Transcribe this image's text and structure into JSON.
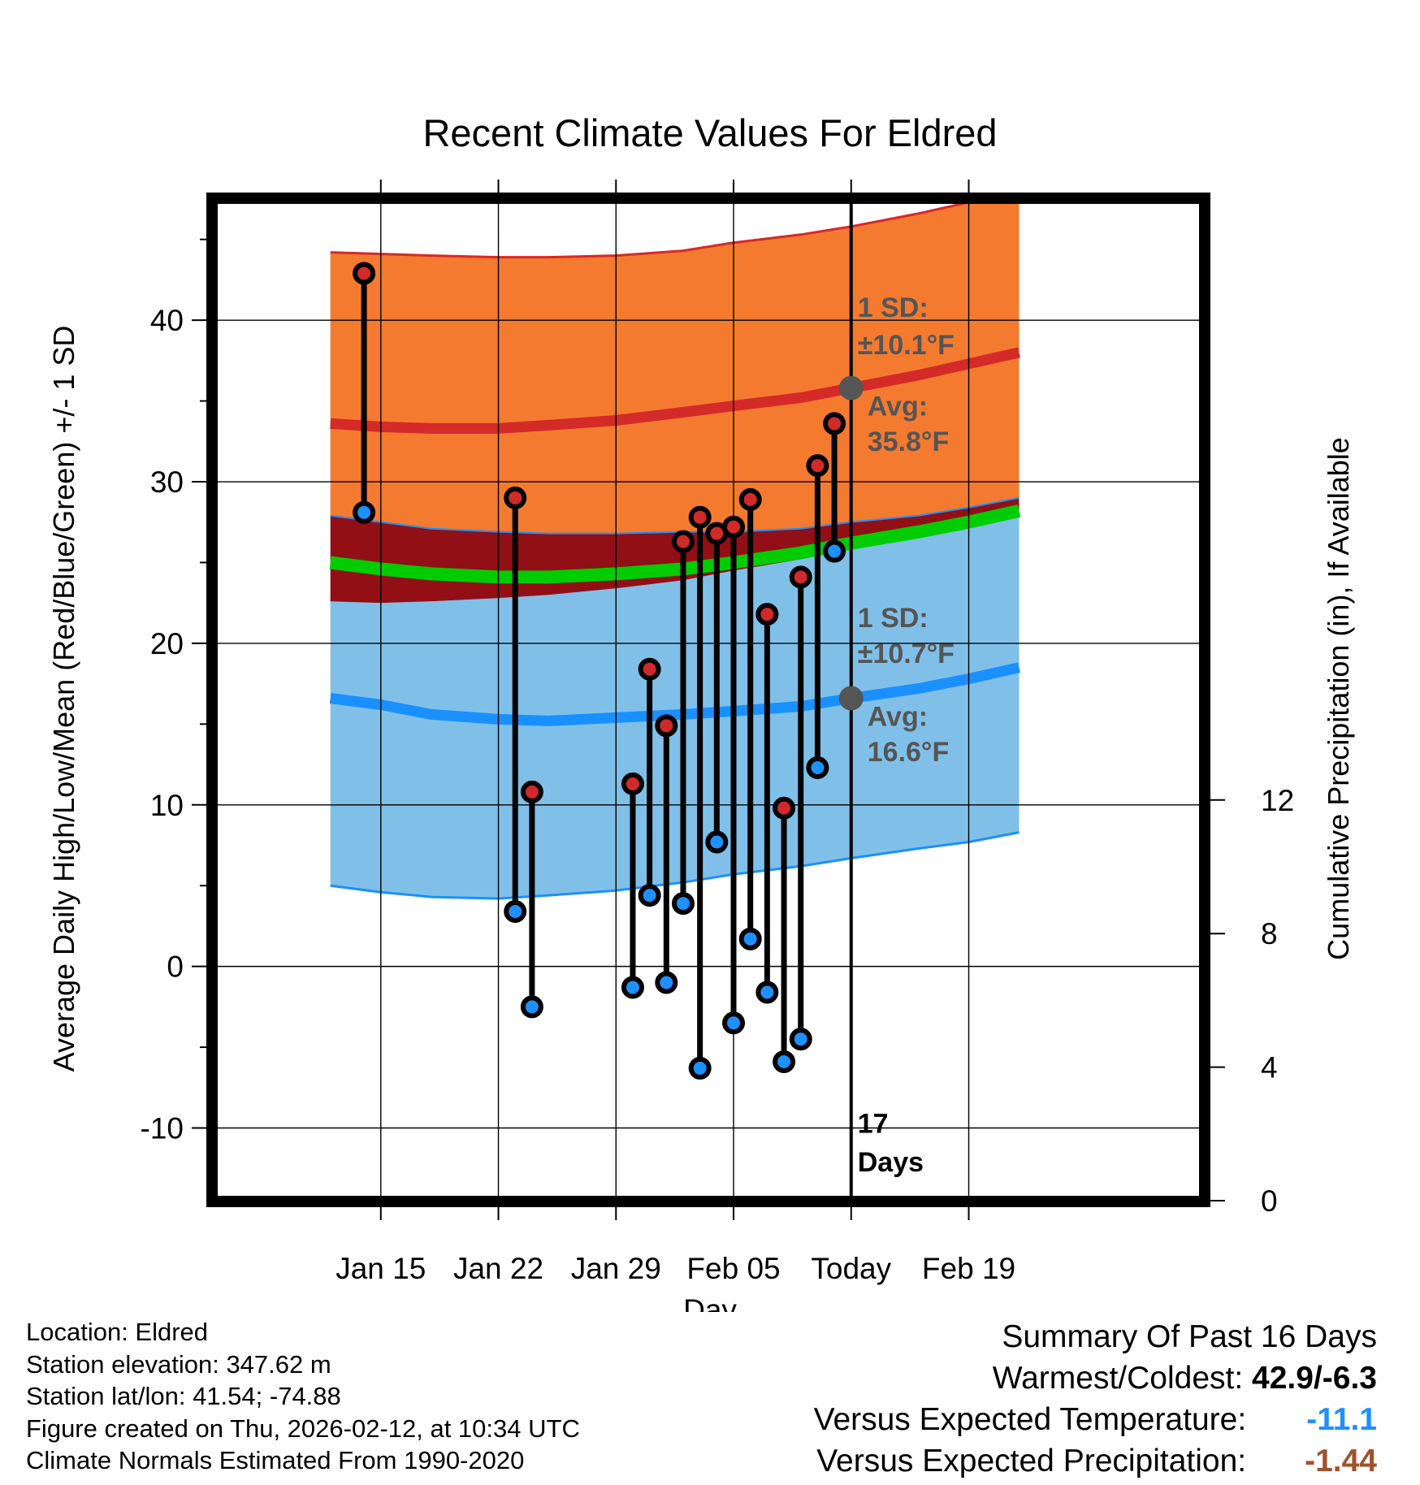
{
  "chart_data": {
    "type": "line",
    "title": "Recent Climate Values For Eldred",
    "xlabel": "Day",
    "ylabel": "Average Daily High/Low/Mean (Red/Blue/Green) +/- 1 SD",
    "y2label": "Cumulative Precipitation (in), If Available",
    "ylim": [
      -14.5,
      47.5
    ],
    "xlim": [
      -10,
      49
    ],
    "y2lim": [
      0,
      30
    ],
    "yticks": [
      -10,
      0,
      10,
      20,
      30,
      40
    ],
    "ytick_labels": [
      "-10",
      "0",
      "10",
      "20",
      "30",
      "40"
    ],
    "y2ticks": [
      0,
      4,
      8,
      12
    ],
    "y2tick_labels": [
      "0",
      "4",
      "8",
      "12"
    ],
    "xticks": [
      0,
      7,
      14,
      21,
      28,
      35
    ],
    "xtick_labels": [
      "Jan 15",
      "Jan 22",
      "Jan 29",
      "Feb 05",
      "Today",
      "Feb 19"
    ],
    "x_unit": "days since Jan 15",
    "today_x": 28,
    "normals": {
      "x": [
        -3,
        0,
        3,
        7,
        10,
        14,
        18,
        21,
        25,
        28,
        32,
        35,
        38
      ],
      "high_mean": [
        33.6,
        33.4,
        33.3,
        33.3,
        33.5,
        33.8,
        34.3,
        34.7,
        35.2,
        35.8,
        36.6,
        37.3,
        38.0
      ],
      "high_upper": [
        44.2,
        44.1,
        44.0,
        43.9,
        43.9,
        44.0,
        44.3,
        44.8,
        45.3,
        45.8,
        46.6,
        47.3,
        48.0
      ],
      "high_lower": [
        27.9,
        27.5,
        27.1,
        26.9,
        26.8,
        26.8,
        26.9,
        26.9,
        27.1,
        27.5,
        27.9,
        28.4,
        29.0
      ],
      "mean": [
        25.0,
        24.6,
        24.3,
        24.1,
        24.1,
        24.3,
        24.6,
        25.0,
        25.6,
        26.2,
        26.9,
        27.5,
        28.2
      ],
      "low_mean": [
        16.6,
        16.2,
        15.6,
        15.3,
        15.2,
        15.4,
        15.6,
        15.8,
        16.1,
        16.6,
        17.2,
        17.8,
        18.5
      ],
      "low_upper": [
        22.6,
        22.5,
        22.6,
        22.8,
        23.0,
        23.4,
        23.9,
        24.5,
        25.2,
        26.0,
        26.8,
        27.3,
        27.8
      ],
      "low_lower": [
        5.0,
        4.6,
        4.3,
        4.2,
        4.4,
        4.7,
        5.2,
        5.7,
        6.2,
        6.7,
        7.3,
        7.7,
        8.3
      ]
    },
    "observations": {
      "x": [
        -1,
        8,
        9,
        15,
        16,
        17,
        18,
        19,
        20,
        21,
        22,
        23,
        24,
        25,
        26,
        27
      ],
      "high": [
        42.9,
        29.0,
        10.8,
        11.3,
        18.4,
        14.9,
        26.3,
        27.8,
        26.8,
        27.2,
        28.9,
        21.8,
        9.8,
        24.1,
        31.0,
        33.6
      ],
      "low": [
        28.1,
        3.4,
        -2.5,
        -1.3,
        4.4,
        -1.0,
        3.9,
        -6.3,
        7.7,
        -3.5,
        1.7,
        -1.6,
        -5.9,
        -4.5,
        12.3,
        25.7
      ]
    },
    "annotations": {
      "high_sd_label": "1 SD:",
      "high_sd_value": "±10.1°F",
      "high_avg_label": "Avg:",
      "high_avg_value": "35.8°F",
      "low_sd_label": "1 SD:",
      "low_sd_value": "±10.7°F",
      "low_avg_label": "Avg:",
      "low_avg_value": "16.6°F",
      "days_count": "17",
      "days_label": "Days",
      "high_avg_point": 35.8,
      "low_avg_point": 16.6
    },
    "colors": {
      "high_band": "#f47a30",
      "high_line": "#d42a28",
      "overlap_band": "#920f16",
      "mean_line": "#00cc00",
      "low_band": "#80c0e8",
      "low_line": "#1a90ff",
      "high_dot": "#d12a2a",
      "low_dot": "#1e90ff",
      "annotation": "#555555",
      "avg_dot": "#555555"
    }
  },
  "footer": {
    "location": "Location: Eldred",
    "elevation": "Station elevation: 347.62 m",
    "latlon": "Station lat/lon: 41.54; -74.88",
    "created": "Figure created on Thu, 2026-02-12, at 10:34 UTC",
    "normals": "Climate Normals Estimated From 1990-2020"
  },
  "summary": {
    "title": "Summary Of Past 16 Days",
    "warmest_label": "Warmest/Coldest:",
    "warmest_value": "42.9/-6.3",
    "temp_label": "Versus Expected Temperature:",
    "temp_value": "-11.1",
    "temp_color": "#1e90ff",
    "precip_label": "Versus Expected Precipitation:",
    "precip_value": "-1.44",
    "precip_color": "#a0522d"
  }
}
